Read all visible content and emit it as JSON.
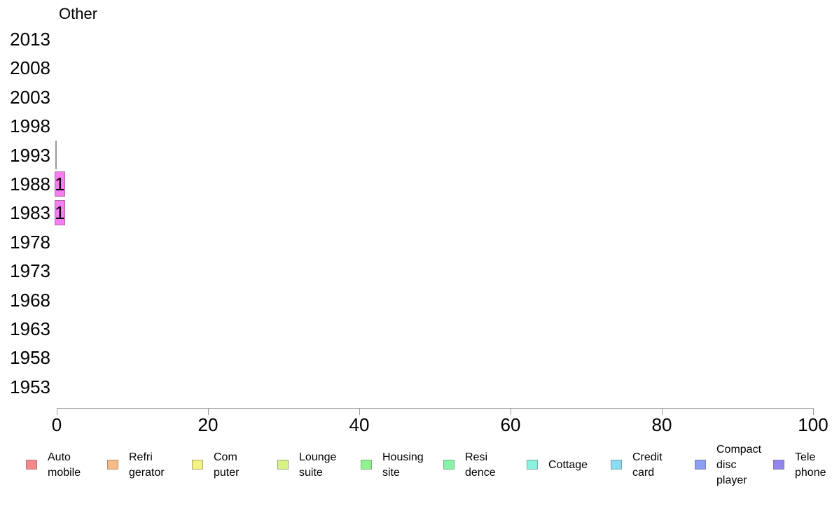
{
  "chart_data": {
    "type": "bar",
    "orientation": "horizontal",
    "title": "Other",
    "categories": [
      "2013",
      "2008",
      "2003",
      "1998",
      "1993",
      "1988",
      "1983",
      "1978",
      "1973",
      "1968",
      "1963",
      "1958",
      "1953"
    ],
    "values": [
      null,
      null,
      null,
      null,
      0,
      1,
      1,
      null,
      null,
      null,
      null,
      null,
      null
    ],
    "bar_value_labels": [
      "",
      "",
      "",
      "",
      "",
      "1",
      "1",
      "",
      "",
      "",
      "",
      "",
      ""
    ],
    "xlabel": "",
    "ylabel": "",
    "xlim": [
      0,
      100
    ],
    "x_ticks": [
      "0",
      "20",
      "40",
      "60",
      "80",
      "100"
    ],
    "grid": false,
    "bar_color": "#f57ef0",
    "zero_marker_color": "#999999",
    "axis_color": "#999999",
    "legend_position": "bottom",
    "legend": [
      {
        "name": "Automobile",
        "lines": [
          "Auto",
          "mobile"
        ],
        "color": "#f48a8a"
      },
      {
        "name": "Refrigerator",
        "lines": [
          "Refri",
          "gerator"
        ],
        "color": "#f7bc86"
      },
      {
        "name": "Computer",
        "lines": [
          "Com",
          "puter"
        ],
        "color": "#f4f284"
      },
      {
        "name": "Lounge suite",
        "lines": [
          "Lounge",
          "suite"
        ],
        "color": "#d8f286"
      },
      {
        "name": "Housing site",
        "lines": [
          "Housing",
          "site"
        ],
        "color": "#90f28d"
      },
      {
        "name": "Residence",
        "lines": [
          "Resi",
          "dence"
        ],
        "color": "#8af2a8"
      },
      {
        "name": "Cottage",
        "lines": [
          "Cottage"
        ],
        "color": "#8af2de"
      },
      {
        "name": "Credit card",
        "lines": [
          "Credit",
          "card"
        ],
        "color": "#8adcf5"
      },
      {
        "name": "Compact disc player",
        "lines": [
          "Compact",
          "disc",
          "player"
        ],
        "color": "#8c9ff2"
      },
      {
        "name": "Telephone",
        "lines": [
          "Tele",
          "phone"
        ],
        "color": "#9186f0"
      }
    ]
  }
}
